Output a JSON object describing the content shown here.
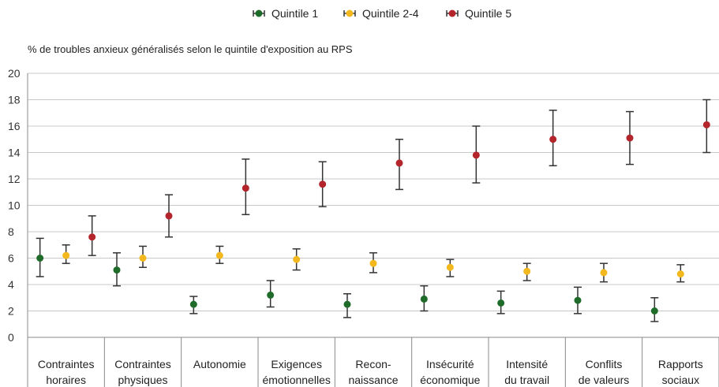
{
  "chart_data": {
    "type": "scatter",
    "title": "",
    "ylabel": "% de troubles anxieux généralisés selon le quintile d'exposition au RPS",
    "xlabel": "",
    "ylim": [
      0,
      20
    ],
    "yticks": [
      0,
      2,
      4,
      6,
      8,
      10,
      12,
      14,
      16,
      18,
      20
    ],
    "grid": true,
    "legend_position": "top-center",
    "categories": [
      [
        "Contraintes",
        "horaires"
      ],
      [
        "Contraintes",
        "physiques"
      ],
      [
        "Autonomie"
      ],
      [
        "Exigences",
        "émotionnelles"
      ],
      [
        "Recon-",
        "naissance"
      ],
      [
        "Insécurité",
        "économique"
      ],
      [
        "Intensité",
        "du travail"
      ],
      [
        "Conflits",
        "de valeurs"
      ],
      [
        "Rapports",
        "sociaux"
      ]
    ],
    "series": [
      {
        "name": "Quintile 1",
        "color": "#1f6b2a",
        "values": [
          6.0,
          5.1,
          2.5,
          3.2,
          2.5,
          2.9,
          2.6,
          2.8,
          2.0
        ],
        "lower": [
          4.6,
          3.9,
          1.8,
          2.3,
          1.5,
          2.0,
          1.8,
          1.8,
          1.2
        ],
        "upper": [
          7.5,
          6.4,
          3.1,
          4.3,
          3.3,
          3.9,
          3.5,
          3.8,
          3.0
        ]
      },
      {
        "name": "Quintile 2-4",
        "color": "#f2b81d",
        "values": [
          6.2,
          6.0,
          6.2,
          5.9,
          5.6,
          5.3,
          5.0,
          4.9,
          4.8
        ],
        "lower": [
          5.6,
          5.3,
          5.6,
          5.1,
          4.9,
          4.6,
          4.3,
          4.2,
          4.2
        ],
        "upper": [
          7.0,
          6.9,
          6.9,
          6.7,
          6.4,
          5.9,
          5.6,
          5.6,
          5.5
        ]
      },
      {
        "name": "Quintile 5",
        "color": "#b3242b",
        "values": [
          7.6,
          9.2,
          11.3,
          11.6,
          13.2,
          13.8,
          15.0,
          15.1,
          16.1
        ],
        "lower": [
          6.2,
          7.6,
          9.3,
          9.9,
          11.2,
          11.7,
          13.0,
          13.1,
          14.0
        ],
        "upper": [
          9.2,
          10.8,
          13.5,
          13.3,
          15.0,
          16.0,
          17.2,
          17.1,
          18.0
        ]
      }
    ]
  }
}
